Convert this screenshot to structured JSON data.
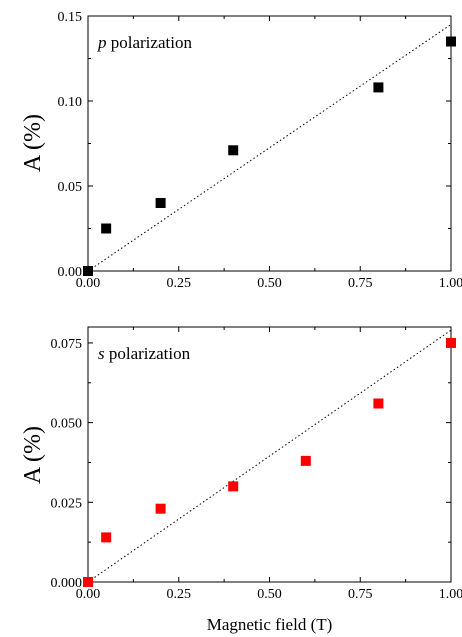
{
  "chart_data": [
    {
      "type": "scatter",
      "annotation_italic": "p",
      "annotation_text": " polarization",
      "ylabel": "A (%)",
      "xlabel": "",
      "xlim": [
        0,
        1
      ],
      "ylim": [
        0,
        0.15
      ],
      "xticks": [
        "0.00",
        "0.25",
        "0.50",
        "0.75",
        "1.00"
      ],
      "yticks": [
        "0.00",
        "0.05",
        "0.10",
        "0.15"
      ],
      "marker_color": "#000000",
      "points": [
        {
          "x": 0.0,
          "y": 0.0
        },
        {
          "x": 0.05,
          "y": 0.025
        },
        {
          "x": 0.2,
          "y": 0.04
        },
        {
          "x": 0.4,
          "y": 0.071
        },
        {
          "x": 0.8,
          "y": 0.108
        },
        {
          "x": 1.0,
          "y": 0.135
        }
      ],
      "fit_line": {
        "style": "dotted",
        "from": [
          0,
          0
        ],
        "to": [
          1,
          0.145
        ]
      }
    },
    {
      "type": "scatter",
      "annotation_italic": "s",
      "annotation_text": " polarization",
      "ylabel": "A (%)",
      "xlabel": "Magnetic field (T)",
      "xlim": [
        0,
        1
      ],
      "ylim": [
        0,
        0.08
      ],
      "xticks": [
        "0.00",
        "0.25",
        "0.50",
        "0.75",
        "1.00"
      ],
      "yticks": [
        "0.000",
        "0.025",
        "0.050",
        "0.075"
      ],
      "marker_color": "#ff0000",
      "points": [
        {
          "x": 0.0,
          "y": 0.0
        },
        {
          "x": 0.05,
          "y": 0.014
        },
        {
          "x": 0.2,
          "y": 0.023
        },
        {
          "x": 0.4,
          "y": 0.03
        },
        {
          "x": 0.6,
          "y": 0.038
        },
        {
          "x": 0.8,
          "y": 0.056
        },
        {
          "x": 1.0,
          "y": 0.075
        }
      ],
      "fit_line": {
        "style": "dotted",
        "from": [
          0,
          0
        ],
        "to": [
          1,
          0.079
        ]
      }
    }
  ]
}
